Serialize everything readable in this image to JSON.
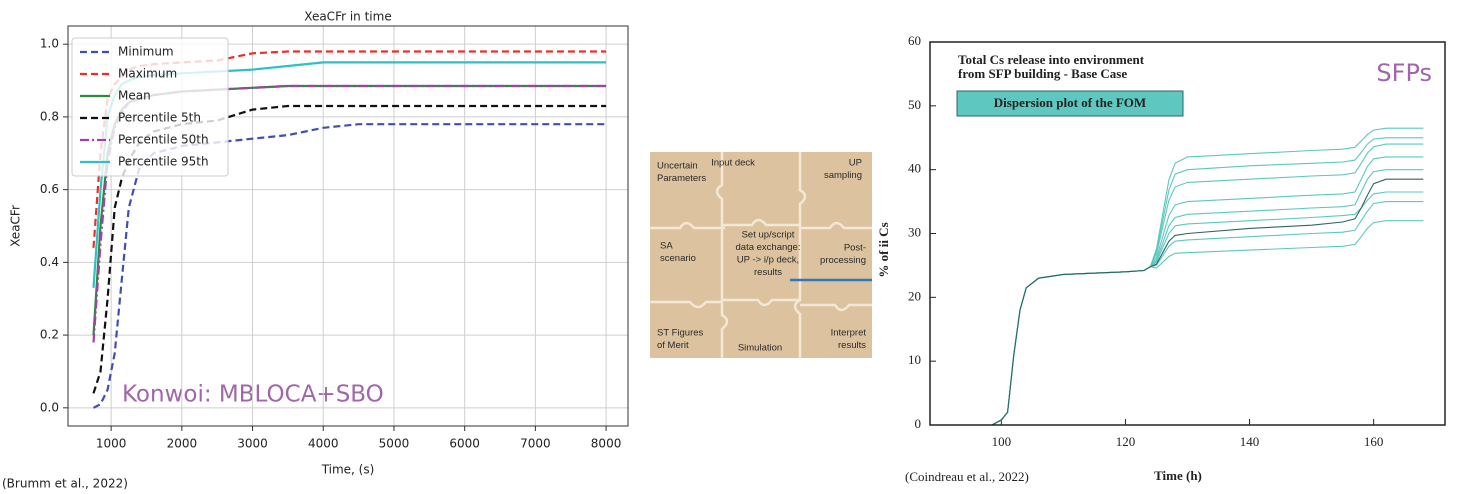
{
  "chart_data": [
    {
      "type": "line",
      "title": "XeaCFr in time",
      "xlabel": "Time, (s)",
      "ylabel": "XeaCFr",
      "x": [
        750,
        850,
        950,
        1050,
        1150,
        1250,
        1400,
        1600,
        2000,
        2500,
        3000,
        3500,
        4000,
        4500,
        8000
      ],
      "series": [
        {
          "name": "Minimum",
          "color": "#3f4fb0",
          "linestyle": "dashed",
          "values": [
            0,
            0.01,
            0.05,
            0.15,
            0.35,
            0.55,
            0.66,
            0.7,
            0.72,
            0.73,
            0.74,
            0.75,
            0.77,
            0.78,
            0.78
          ]
        },
        {
          "name": "Maximum",
          "color": "#e8302a",
          "linestyle": "dashed",
          "values": [
            0.44,
            0.7,
            0.85,
            0.89,
            0.91,
            0.93,
            0.94,
            0.945,
            0.95,
            0.955,
            0.975,
            0.98,
            0.98,
            0.98,
            0.98
          ]
        },
        {
          "name": "Mean",
          "color": "#2e8b3e",
          "linestyle": "solid",
          "values": [
            0.2,
            0.5,
            0.7,
            0.78,
            0.82,
            0.84,
            0.85,
            0.86,
            0.87,
            0.875,
            0.88,
            0.885,
            0.885,
            0.885,
            0.885
          ]
        },
        {
          "name": "Percentile 5th",
          "color": "#111111",
          "linestyle": "dashed",
          "values": [
            0.04,
            0.1,
            0.3,
            0.55,
            0.63,
            0.68,
            0.73,
            0.76,
            0.78,
            0.79,
            0.82,
            0.83,
            0.83,
            0.83,
            0.83
          ]
        },
        {
          "name": "Percentile 50th",
          "color": "#a23fa8",
          "linestyle": "dashdot",
          "values": [
            0.18,
            0.45,
            0.68,
            0.77,
            0.81,
            0.84,
            0.85,
            0.86,
            0.87,
            0.875,
            0.88,
            0.885,
            0.885,
            0.885,
            0.885
          ]
        },
        {
          "name": "Percentile 95th",
          "color": "#2fbfc4",
          "linestyle": "solid",
          "values": [
            0.33,
            0.6,
            0.8,
            0.86,
            0.89,
            0.9,
            0.91,
            0.915,
            0.92,
            0.925,
            0.93,
            0.94,
            0.95,
            0.95,
            0.95
          ]
        }
      ],
      "xlim": [
        390,
        8310
      ],
      "xticks": [
        1000,
        2000,
        3000,
        4000,
        5000,
        6000,
        7000,
        8000
      ],
      "ylim": [
        -0.05,
        1.05
      ],
      "yticks": [
        {
          "value": 0,
          "label": "0.0"
        },
        0.2,
        0.4,
        0.6,
        0.8,
        {
          "value": 1,
          "label": "1.0"
        }
      ],
      "grid": true,
      "legend": "upper left",
      "annotations": [
        "Konwoi: MBLOCA+SBO"
      ],
      "source": "(Brumm et al., 2022)"
    },
    {
      "type": "line",
      "xlabel": "Time (h)",
      "ylabel": "% of ii Cs",
      "x": [
        98.5,
        100,
        101,
        102,
        103,
        104,
        106,
        110,
        120,
        123,
        124,
        125,
        126,
        127,
        128,
        130,
        140,
        150,
        155,
        157,
        158,
        159,
        160,
        162,
        168
      ],
      "series": [
        {
          "color": "#5cc7c0",
          "values": [
            0,
            0.8,
            2,
            11,
            18,
            21.5,
            23,
            23.6,
            24,
            24.2,
            24.8,
            27.6,
            33,
            38.4,
            41,
            42,
            42.5,
            43,
            43.2,
            43.5,
            44.5,
            45.5,
            46.2,
            46.5,
            46.5
          ]
        },
        {
          "color": "#5cc7c0",
          "values": [
            0,
            0.8,
            2,
            11,
            18,
            21.5,
            23,
            23.6,
            24,
            24.2,
            24.8,
            27.2,
            32,
            36.8,
            39.3,
            40,
            40.6,
            41,
            41.2,
            41.5,
            42.7,
            44,
            44.8,
            45,
            45
          ]
        },
        {
          "color": "#5cc7c0",
          "values": [
            0,
            0.8,
            2,
            11,
            18,
            21.5,
            23,
            23.6,
            24,
            24.2,
            24.8,
            26.8,
            31,
            35.2,
            37.3,
            38,
            38.5,
            39,
            39.2,
            39.5,
            41,
            42.6,
            43.6,
            44,
            44
          ]
        },
        {
          "color": "#5cc7c0",
          "values": [
            0,
            0.8,
            2,
            11,
            18,
            21.5,
            23,
            23.6,
            24,
            24.2,
            24.8,
            26.2,
            29.5,
            32.8,
            34.5,
            35,
            35.5,
            36,
            36.2,
            36.5,
            38.5,
            40.5,
            41.7,
            42,
            42
          ]
        },
        {
          "color": "#5cc7c0",
          "values": [
            0,
            0.8,
            2,
            11,
            18,
            21.5,
            23,
            23.6,
            24,
            24.2,
            24.8,
            25.8,
            28.5,
            31.2,
            32.5,
            33,
            33.5,
            34,
            34.2,
            34.5,
            36.5,
            38.5,
            39.7,
            40,
            40
          ]
        },
        {
          "color": "#5cc7c0",
          "values": [
            0,
            0.8,
            2,
            11,
            18,
            21.5,
            23,
            23.6,
            24,
            24.2,
            24.8,
            25.5,
            27.8,
            30,
            31.2,
            31.5,
            32,
            32.5,
            32.8,
            33,
            34,
            35.2,
            36.2,
            36.5,
            36.5
          ]
        },
        {
          "color": "#5cc7c0",
          "values": [
            0,
            0.8,
            2,
            11,
            18,
            21.5,
            23,
            23.6,
            24,
            24.2,
            24.8,
            25,
            26.5,
            28,
            28.8,
            29,
            29.5,
            30,
            30.2,
            30.5,
            32,
            33.5,
            34.7,
            35,
            35
          ]
        },
        {
          "color": "#5cc7c0",
          "values": [
            0,
            0.8,
            2,
            11,
            18,
            21.5,
            23,
            23.6,
            24,
            24.2,
            24.8,
            24.6,
            25.5,
            26.4,
            26.9,
            27,
            27.4,
            27.8,
            28,
            28.3,
            29.5,
            30.8,
            31.7,
            32,
            32
          ]
        },
        {
          "color": "#2f6663",
          "values": [
            0,
            0.8,
            2,
            11,
            18,
            21.5,
            23,
            23.6,
            24,
            24.2,
            24.8,
            25.2,
            27,
            28.8,
            29.7,
            30,
            30.8,
            31.3,
            31.8,
            32.3,
            34,
            36,
            37.8,
            38.5,
            38.5
          ]
        }
      ],
      "xlim": [
        88.5,
        171.5
      ],
      "xticks": [
        100,
        120,
        140,
        160
      ],
      "ylim": [
        0,
        60
      ],
      "yticks": [
        0,
        10,
        20,
        30,
        40,
        50,
        60
      ],
      "grid": false,
      "annotations": [
        "Total Cs release into environment",
        "from SFP building - Base Case",
        "Dispersion plot of the FOM",
        "SFPs"
      ],
      "source": "(Coindreau et al., 2022)"
    }
  ],
  "puzzle": {
    "pieces": [
      [
        "Uncertain",
        "Parameters"
      ],
      [
        "Input deck"
      ],
      [
        "UP",
        "sampling"
      ],
      [
        "SA",
        "scenario"
      ],
      [
        "Set up/script",
        "data exchange:",
        "UP -> i/p deck,",
        "results"
      ],
      [
        "Post-",
        "processing"
      ],
      [
        "ST Figures",
        "of Merit"
      ],
      [
        "Simulation"
      ],
      [
        "Interpret",
        "results"
      ]
    ]
  }
}
